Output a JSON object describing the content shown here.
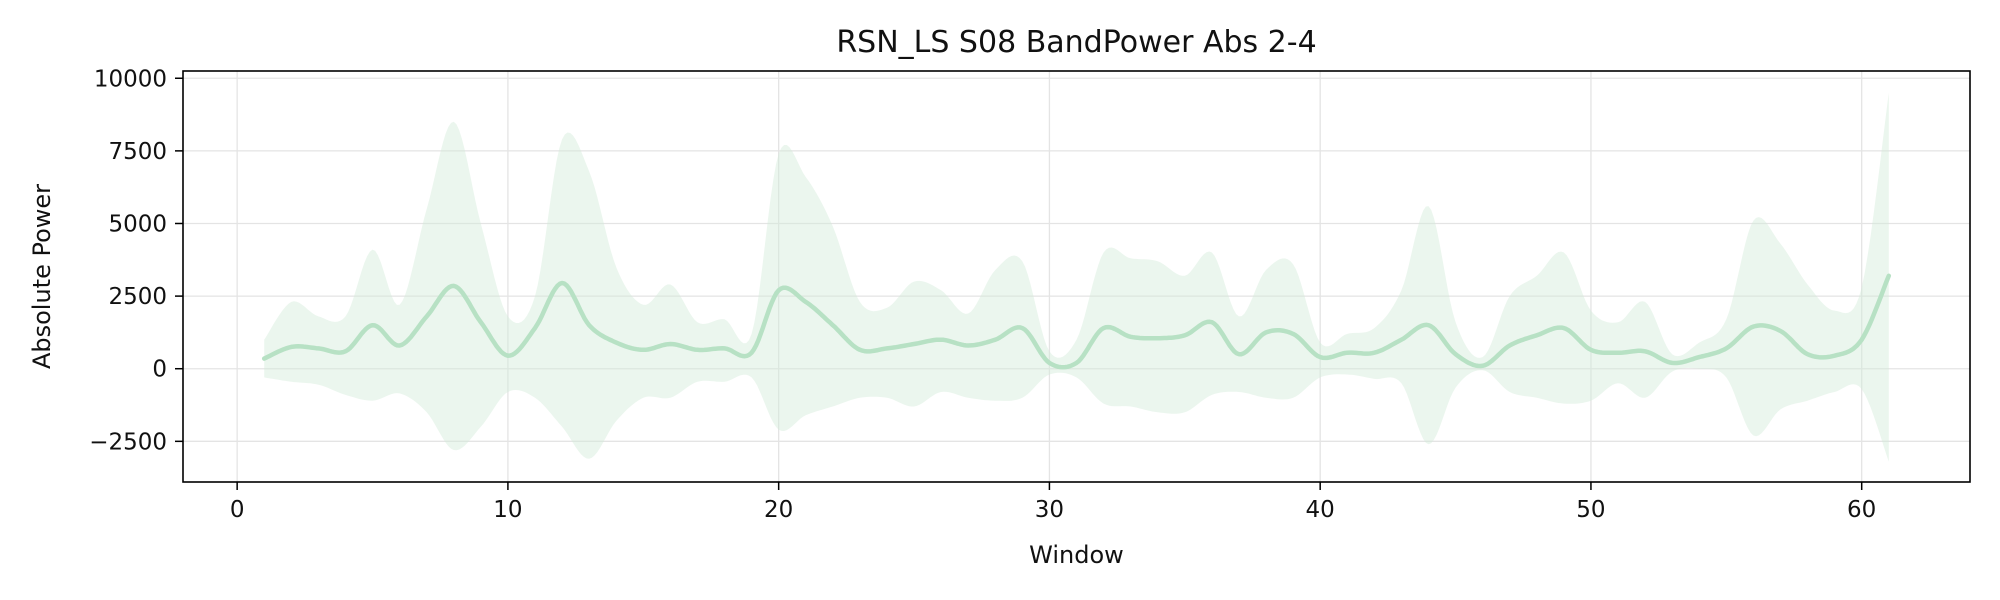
{
  "chart_data": {
    "type": "line",
    "title": "RSN_LS S08 BandPower Abs 2-4",
    "xlabel": "Window",
    "ylabel": "Absolute Power",
    "xlim": [
      -2,
      64
    ],
    "ylim": [
      -3900,
      10250
    ],
    "x_ticks": [
      0,
      10,
      20,
      30,
      40,
      50,
      60
    ],
    "y_ticks": [
      -2500,
      0,
      2500,
      5000,
      7500,
      10000
    ],
    "y_tick_labels": [
      "−2500",
      "0",
      "2500",
      "5000",
      "7500",
      "10000"
    ],
    "grid": true,
    "line_color": "#b7e1c4",
    "band_color": "#d2ecd9",
    "series": [
      {
        "x": [
          1,
          2,
          3,
          4,
          5,
          6,
          7,
          8,
          9,
          10,
          11,
          12,
          13,
          14,
          15,
          16,
          17,
          18,
          19,
          20,
          21,
          22,
          23,
          24,
          25,
          26,
          27,
          28,
          29,
          30,
          31,
          32,
          33,
          34,
          35,
          36,
          37,
          38,
          39,
          40,
          41,
          42,
          43,
          44,
          45,
          46,
          47,
          48,
          49,
          50,
          51,
          52,
          53,
          54,
          55,
          56,
          57,
          58,
          59,
          60,
          61
        ],
        "mean": [
          350,
          750,
          700,
          600,
          1500,
          800,
          1800,
          2850,
          1600,
          450,
          1400,
          2950,
          1500,
          900,
          650,
          850,
          650,
          700,
          550,
          2700,
          2300,
          1500,
          650,
          700,
          850,
          1000,
          800,
          1000,
          1400,
          200,
          200,
          1400,
          1100,
          1050,
          1150,
          1600,
          500,
          1250,
          1200,
          400,
          550,
          550,
          1000,
          1500,
          500,
          100,
          800,
          1150,
          1400,
          650,
          550,
          600,
          200,
          400,
          700,
          1450,
          1300,
          500,
          450,
          1000,
          3200
        ],
        "upper": [
          1000,
          2300,
          1800,
          1800,
          4100,
          2200,
          5500,
          8500,
          5000,
          1800,
          2500,
          7900,
          6800,
          3500,
          2200,
          2900,
          1600,
          1700,
          1200,
          7400,
          6600,
          4900,
          2300,
          2100,
          3000,
          2700,
          1900,
          3400,
          3700,
          600,
          1000,
          4000,
          3800,
          3700,
          3200,
          4000,
          1800,
          3400,
          3600,
          900,
          1200,
          1400,
          2700,
          5600,
          1600,
          400,
          2500,
          3200,
          4000,
          2000,
          1600,
          2300,
          500,
          900,
          1700,
          5100,
          4300,
          2900,
          2000,
          2800,
          9500
        ],
        "lower": [
          -300,
          -450,
          -550,
          -900,
          -1100,
          -850,
          -1500,
          -2800,
          -2000,
          -800,
          -1000,
          -2000,
          -3100,
          -1800,
          -1000,
          -1000,
          -450,
          -450,
          -300,
          -2100,
          -1600,
          -1300,
          -1000,
          -1000,
          -1300,
          -800,
          -1000,
          -1100,
          -1000,
          -200,
          -300,
          -1200,
          -1300,
          -1500,
          -1500,
          -900,
          -800,
          -1000,
          -1000,
          -300,
          -200,
          -350,
          -500,
          -2600,
          -650,
          -50,
          -800,
          -1000,
          -1200,
          -1100,
          -500,
          -1000,
          -100,
          0,
          -300,
          -2300,
          -1400,
          -1100,
          -800,
          -700,
          -3200
        ]
      }
    ]
  }
}
